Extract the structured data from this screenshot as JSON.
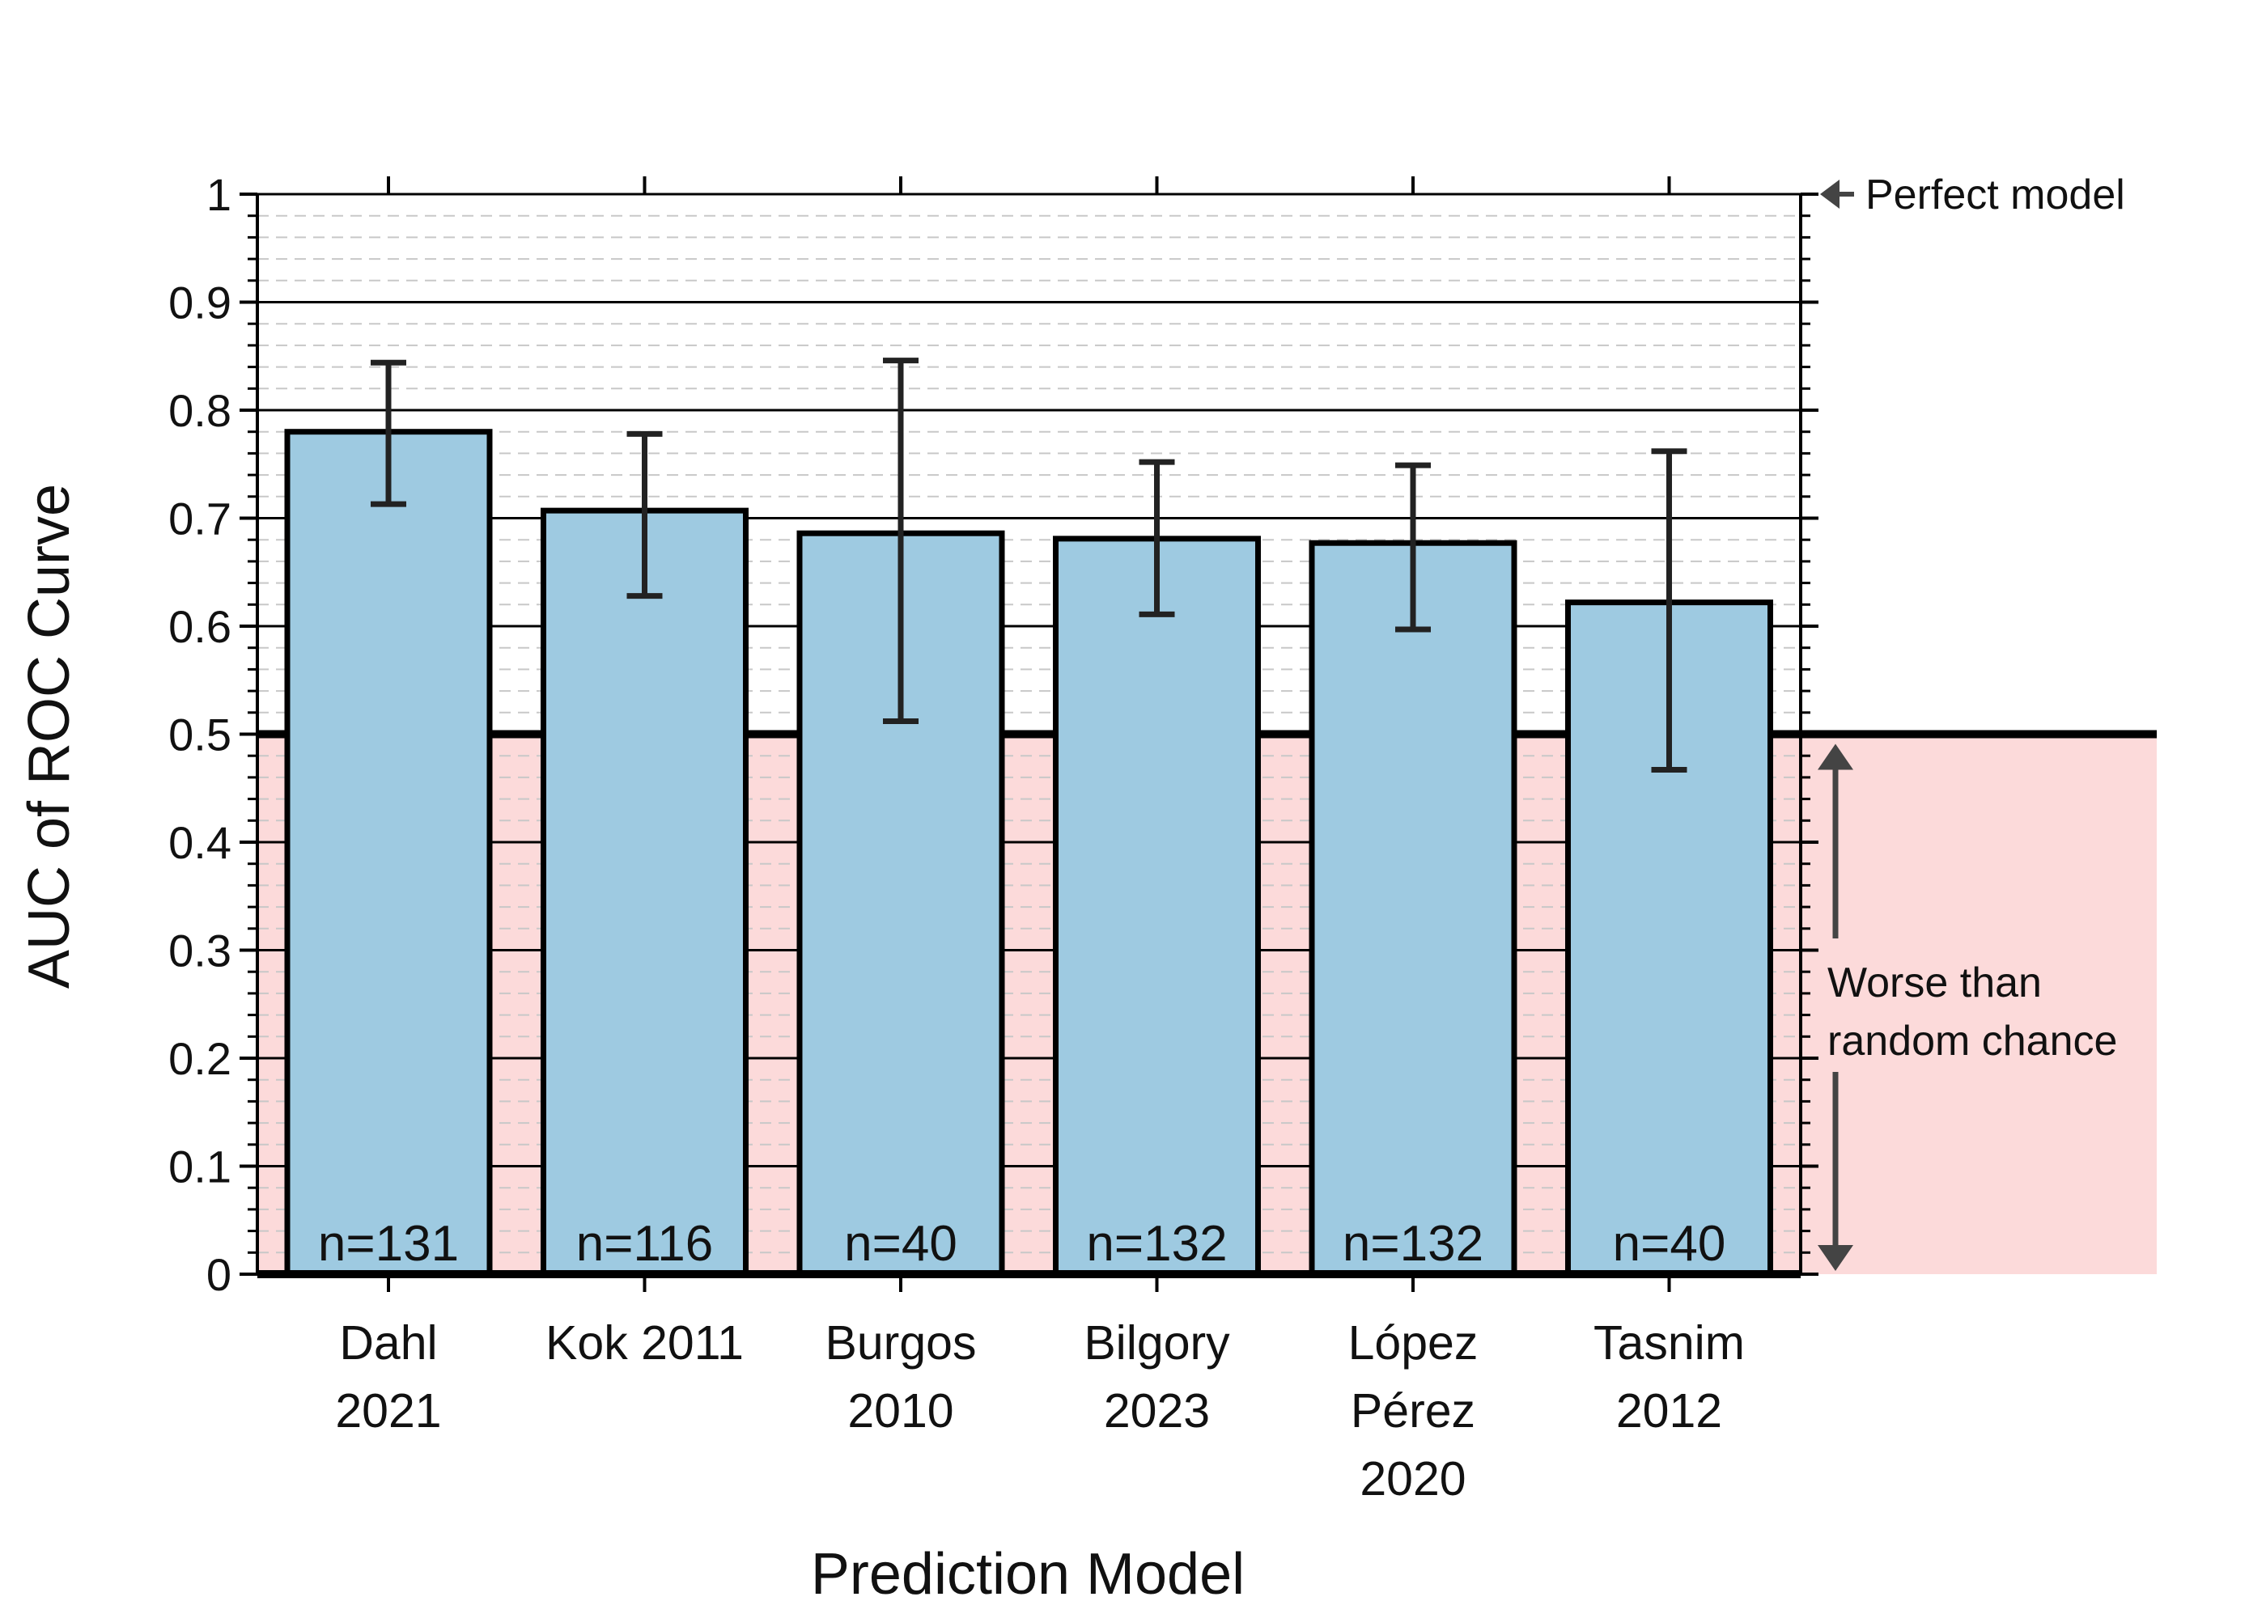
{
  "chart_data": {
    "type": "bar",
    "xlabel": "Prediction Model",
    "ylabel": "AUC of ROC Curve",
    "ylim": [
      0,
      1
    ],
    "yticks": [
      "0",
      "0.1",
      "0.2",
      "0.3",
      "0.4",
      "0.5",
      "0.6",
      "0.7",
      "0.8",
      "0.9",
      "1"
    ],
    "grid": true,
    "categories": [
      [
        "Dahl",
        "2021"
      ],
      [
        "Kok 2011"
      ],
      [
        "Burgos",
        "2010"
      ],
      [
        "Bilgory",
        "2023"
      ],
      [
        "López",
        "Pérez",
        "2020"
      ],
      [
        "Tasnim",
        "2012"
      ]
    ],
    "values": [
      0.78,
      0.707,
      0.686,
      0.681,
      0.677,
      0.622
    ],
    "error_low": [
      0.713,
      0.628,
      0.512,
      0.611,
      0.597,
      0.467
    ],
    "error_high": [
      0.844,
      0.778,
      0.846,
      0.752,
      0.749,
      0.762
    ],
    "n_labels": [
      "n=131",
      "n=116",
      "n=40",
      "n=132",
      "n=132",
      "n=40"
    ],
    "reference_line": 0.5,
    "annotations": {
      "perfect": "Perfect model",
      "worse_line1": "Worse than",
      "worse_line2": "random chance"
    },
    "colors": {
      "bar": "#9ecae1",
      "worse_region": "#fcdada",
      "edge": "#000000",
      "errorbar": "#222222",
      "minor_grid": "#c8c8c8",
      "arrow": "#444444"
    }
  }
}
